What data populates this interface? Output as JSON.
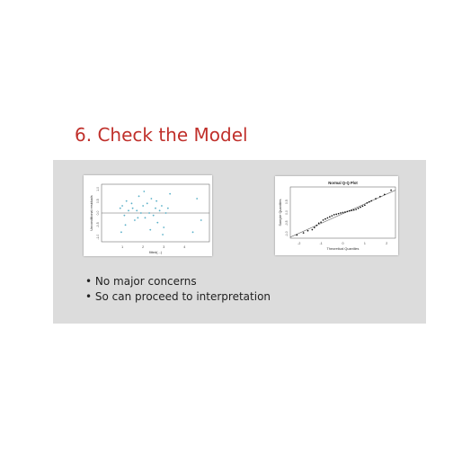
{
  "slide": {
    "title": "6. Check the Model",
    "bullets": [
      "No major concerns",
      "So can proceed to interpretation"
    ]
  },
  "colors": {
    "title": "#c0302b",
    "panel": "#dcdcdc",
    "residual_points": "#5ab0c8",
    "qq_points": "#111111"
  },
  "chart_data": [
    {
      "type": "scatter",
      "title": "",
      "xlabel": "fitted(...)",
      "ylabel": "Unconditional residuals",
      "xlim": [
        0,
        5.2
      ],
      "ylim": [
        -1.2,
        1.2
      ],
      "xticks": [
        "1",
        "2",
        "3",
        "4"
      ],
      "yticks": [
        "-1.0",
        "-0.5",
        "0.0",
        "0.5",
        "1.0"
      ],
      "reference_line_y": 0,
      "grid": false,
      "x": [
        0.9,
        1.0,
        1.1,
        1.2,
        1.3,
        1.5,
        1.6,
        1.7,
        1.8,
        1.9,
        2.0,
        2.1,
        2.2,
        2.3,
        2.4,
        2.5,
        2.6,
        2.7,
        2.8,
        2.9,
        3.0,
        3.1,
        3.2,
        3.3,
        0.95,
        1.15,
        1.45,
        1.75,
        2.05,
        2.35,
        2.65,
        2.95,
        4.4,
        4.6,
        4.8
      ],
      "y": [
        0.2,
        0.3,
        -0.1,
        0.5,
        0.1,
        0.2,
        -0.3,
        0.1,
        0.7,
        0.0,
        0.3,
        -0.2,
        0.4,
        0.0,
        0.6,
        -0.1,
        0.2,
        -0.4,
        0.1,
        0.3,
        -0.6,
        0.0,
        0.2,
        0.8,
        -0.8,
        -0.5,
        0.4,
        -0.2,
        0.9,
        -0.7,
        0.5,
        -0.9,
        -0.8,
        0.6,
        -0.3
      ]
    },
    {
      "type": "scatter",
      "title": "Normal Q-Q Plot",
      "xlabel": "Theoretical Quantiles",
      "ylabel": "Sample Quantiles",
      "xlim": [
        -2.4,
        2.4
      ],
      "ylim": [
        -1.2,
        1.2
      ],
      "xticks": [
        "-2",
        "-1",
        "0",
        "1",
        "2"
      ],
      "yticks": [
        "-1.0",
        "-0.5",
        "0.0",
        "0.5"
      ],
      "reference_line": "qqline",
      "grid": false,
      "x": [
        -2.1,
        -1.8,
        -1.6,
        -1.4,
        -1.3,
        -1.2,
        -1.1,
        -1.0,
        -0.9,
        -0.8,
        -0.7,
        -0.6,
        -0.5,
        -0.4,
        -0.3,
        -0.2,
        -0.1,
        0.0,
        0.1,
        0.2,
        0.3,
        0.4,
        0.5,
        0.6,
        0.7,
        0.8,
        0.9,
        1.0,
        1.1,
        1.2,
        1.3,
        1.5,
        1.7,
        1.9,
        2.2
      ],
      "y": [
        -1.05,
        -0.95,
        -0.85,
        -0.8,
        -0.7,
        -0.6,
        -0.5,
        -0.45,
        -0.35,
        -0.3,
        -0.25,
        -0.2,
        -0.15,
        -0.1,
        -0.08,
        -0.05,
        -0.02,
        0.0,
        0.02,
        0.05,
        0.08,
        0.1,
        0.12,
        0.15,
        0.2,
        0.25,
        0.3,
        0.35,
        0.45,
        0.5,
        0.55,
        0.65,
        0.75,
        0.85,
        1.05
      ]
    }
  ]
}
